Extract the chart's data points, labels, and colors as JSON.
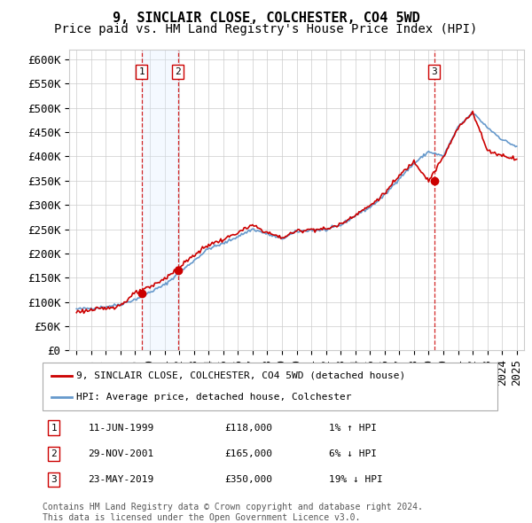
{
  "title": "9, SINCLAIR CLOSE, COLCHESTER, CO4 5WD",
  "subtitle": "Price paid vs. HM Land Registry's House Price Index (HPI)",
  "ylim": [
    0,
    620000
  ],
  "yticks": [
    0,
    50000,
    100000,
    150000,
    200000,
    250000,
    300000,
    350000,
    400000,
    450000,
    500000,
    550000,
    600000
  ],
  "ytick_labels": [
    "£0",
    "£50K",
    "£100K",
    "£150K",
    "£200K",
    "£250K",
    "£300K",
    "£350K",
    "£400K",
    "£450K",
    "£500K",
    "£550K",
    "£600K"
  ],
  "hpi_color": "#6699cc",
  "price_color": "#cc0000",
  "background_color": "#ffffff",
  "grid_color": "#cccccc",
  "sale_dates": [
    1999.44,
    2001.91,
    2019.39
  ],
  "sale_prices": [
    118000,
    165000,
    350000
  ],
  "sale_labels": [
    "1",
    "2",
    "3"
  ],
  "sale_shade_pairs": [
    [
      1999.44,
      2001.91
    ]
  ],
  "vline_color": "#cc0000",
  "shade_color": "#ddeeff",
  "legend_entries": [
    {
      "label": "9, SINCLAIR CLOSE, COLCHESTER, CO4 5WD (detached house)",
      "color": "#cc0000"
    },
    {
      "label": "HPI: Average price, detached house, Colchester",
      "color": "#6699cc"
    }
  ],
  "table_rows": [
    {
      "num": "1",
      "date": "11-JUN-1999",
      "price": "£118,000",
      "hpi": "1% ↑ HPI"
    },
    {
      "num": "2",
      "date": "29-NOV-2001",
      "price": "£165,000",
      "hpi": "6% ↓ HPI"
    },
    {
      "num": "3",
      "date": "23-MAY-2019",
      "price": "£350,000",
      "hpi": "19% ↓ HPI"
    }
  ],
  "footnote": "Contains HM Land Registry data © Crown copyright and database right 2024.\nThis data is licensed under the Open Government Licence v3.0.",
  "title_fontsize": 11,
  "subtitle_fontsize": 10,
  "tick_fontsize": 9,
  "xmin": 1994.5,
  "xmax": 2025.5,
  "hpi_years": [
    1995,
    1996,
    1997,
    1998,
    1999,
    2000,
    2001,
    2002,
    2003,
    2004,
    2005,
    2006,
    2007,
    2008,
    2009,
    2010,
    2011,
    2012,
    2013,
    2014,
    2015,
    2016,
    2017,
    2018,
    2019,
    2020,
    2021,
    2022,
    2023,
    2024,
    2025
  ],
  "hpi_values": [
    85000,
    87000,
    90000,
    95000,
    105000,
    120000,
    135000,
    160000,
    185000,
    210000,
    220000,
    235000,
    250000,
    240000,
    230000,
    245000,
    248000,
    248000,
    258000,
    278000,
    295000,
    320000,
    355000,
    385000,
    410000,
    400000,
    460000,
    490000,
    460000,
    435000,
    420000
  ],
  "price_years": [
    1995,
    1996,
    1997,
    1998,
    1999,
    2000,
    2001,
    2002,
    2003,
    2004,
    2005,
    2006,
    2007,
    2008,
    2009,
    2010,
    2011,
    2012,
    2013,
    2014,
    2015,
    2016,
    2017,
    2018,
    2019,
    2020,
    2021,
    2022,
    2023,
    2024,
    2025
  ],
  "price_values": [
    80000,
    83000,
    87000,
    93000,
    118000,
    130000,
    148000,
    172000,
    196000,
    218000,
    228000,
    243000,
    258000,
    243000,
    232000,
    246000,
    250000,
    250000,
    260000,
    280000,
    298000,
    324000,
    360000,
    390000,
    350000,
    398000,
    458000,
    492000,
    412000,
    402000,
    395000
  ]
}
